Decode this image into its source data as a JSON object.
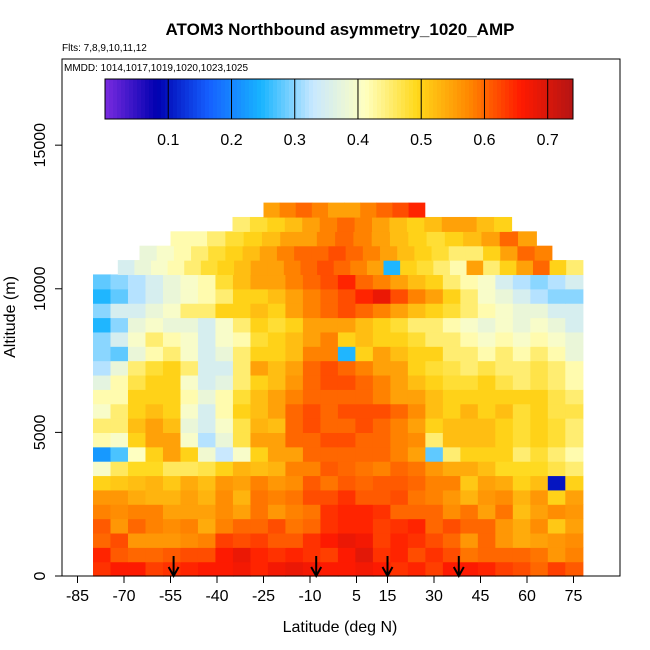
{
  "chart_data": {
    "type": "heatmap",
    "title": "ATOM3 Northbound asymmetry_1020_AMP",
    "flights_label": "Flts: 7,8,9,10,11,12",
    "mmdd_label": "MMDD: 1014,1017,1019,1020,1023,1025",
    "xlabel": "Latitude (deg N)",
    "ylabel": "Altitude (m)",
    "xlim": [
      -90,
      90
    ],
    "ylim": [
      0,
      18000
    ],
    "x_ticks": [
      -85,
      -70,
      -55,
      -40,
      -25,
      -10,
      5,
      15,
      30,
      45,
      60,
      75
    ],
    "y_ticks": [
      0,
      5000,
      10000,
      15000
    ],
    "colorbar": {
      "range": [
        0,
        0.74
      ],
      "ticks": [
        0.1,
        0.2,
        0.3,
        0.4,
        0.5,
        0.6,
        0.7
      ],
      "colors": [
        "#7a2be0",
        "#0000b0",
        "#1560ff",
        "#18b4ff",
        "#c8e8ff",
        "#ffffc0",
        "#ffd81a",
        "#ff8800",
        "#ff1a00",
        "#b41414"
      ]
    },
    "arrows_latitude": [
      -54,
      -8,
      15,
      38
    ],
    "bands": [
      {
        "alt": 250,
        "lat_min": -80,
        "lat_max": 78,
        "values": [
          0.64,
          0.66,
          0.66,
          0.63,
          0.64,
          0.65,
          0.66,
          0.66,
          0.67,
          0.65,
          0.67,
          0.68,
          0.67,
          0.66,
          0.66,
          0.67,
          0.66,
          0.64,
          0.65,
          0.63,
          0.66,
          0.66,
          0.65,
          0.63,
          0.62,
          0.6,
          0.63,
          0.61
        ]
      },
      {
        "alt": 750,
        "lat_min": -80,
        "lat_max": 78,
        "values": [
          0.65,
          0.61,
          0.6,
          0.6,
          0.61,
          0.62,
          0.62,
          0.66,
          0.68,
          0.65,
          0.64,
          0.65,
          0.64,
          0.63,
          0.66,
          0.69,
          0.64,
          0.65,
          0.62,
          0.64,
          0.62,
          0.59,
          0.6,
          0.6,
          0.6,
          0.59,
          0.56,
          0.58
        ]
      },
      {
        "alt": 1250,
        "lat_min": -80,
        "lat_max": 78,
        "values": [
          0.6,
          0.62,
          0.56,
          0.56,
          0.56,
          0.57,
          0.58,
          0.63,
          0.62,
          0.63,
          0.61,
          0.61,
          0.64,
          0.66,
          0.68,
          0.67,
          0.63,
          0.65,
          0.64,
          0.62,
          0.6,
          0.56,
          0.6,
          0.56,
          0.54,
          0.55,
          0.56,
          0.57
        ]
      },
      {
        "alt": 1750,
        "lat_min": -80,
        "lat_max": 78,
        "values": [
          0.61,
          0.56,
          0.6,
          0.58,
          0.57,
          0.58,
          0.54,
          0.58,
          0.6,
          0.6,
          0.62,
          0.59,
          0.6,
          0.64,
          0.65,
          0.65,
          0.63,
          0.64,
          0.65,
          0.6,
          0.62,
          0.6,
          0.6,
          0.56,
          0.54,
          0.57,
          0.51,
          0.55
        ]
      },
      {
        "alt": 2250,
        "lat_min": -80,
        "lat_max": 78,
        "values": [
          0.58,
          0.57,
          0.58,
          0.58,
          0.55,
          0.55,
          0.55,
          0.57,
          0.55,
          0.59,
          0.56,
          0.58,
          0.59,
          0.64,
          0.65,
          0.65,
          0.64,
          0.6,
          0.6,
          0.6,
          0.57,
          0.59,
          0.55,
          0.59,
          0.52,
          0.55,
          0.57,
          0.56
        ]
      },
      {
        "alt": 2750,
        "lat_min": -80,
        "lat_max": 78,
        "values": [
          0.56,
          0.56,
          0.54,
          0.53,
          0.53,
          0.55,
          0.53,
          0.57,
          0.53,
          0.59,
          0.58,
          0.59,
          0.62,
          0.62,
          0.64,
          0.61,
          0.61,
          0.62,
          0.59,
          0.58,
          0.56,
          0.53,
          0.56,
          0.57,
          0.53,
          0.56,
          0.5,
          0.55
        ]
      },
      {
        "alt": 3250,
        "lat_min": -80,
        "lat_max": 78,
        "values": [
          0.5,
          0.51,
          0.52,
          0.53,
          0.51,
          0.54,
          0.52,
          0.56,
          0.55,
          0.58,
          0.56,
          0.57,
          0.61,
          0.59,
          0.61,
          0.6,
          0.61,
          0.61,
          0.6,
          0.58,
          0.58,
          0.51,
          0.55,
          0.54,
          0.5,
          0.52,
          0.1,
          0.5
        ]
      },
      {
        "alt": 3750,
        "lat_min": -80,
        "lat_max": 78,
        "values": [
          0.4,
          0.46,
          0.49,
          0.49,
          0.46,
          0.46,
          0.47,
          0.5,
          0.53,
          0.52,
          0.53,
          0.58,
          0.58,
          0.61,
          0.6,
          0.59,
          0.58,
          0.6,
          0.59,
          0.56,
          0.54,
          0.54,
          0.52,
          0.49,
          0.49,
          0.49,
          0.47,
          0.45
        ]
      },
      {
        "alt": 4250,
        "lat_min": -80,
        "lat_max": 78,
        "values": [
          0.22,
          0.27,
          0.41,
          0.5,
          0.55,
          0.5,
          0.39,
          0.33,
          0.4,
          0.5,
          0.55,
          0.55,
          0.6,
          0.6,
          0.6,
          0.6,
          0.6,
          0.58,
          0.55,
          0.28,
          0.45,
          0.5,
          0.5,
          0.5,
          0.45,
          0.48,
          0.45,
          0.42
        ]
      },
      {
        "alt": 4750,
        "lat_min": -80,
        "lat_max": 78,
        "values": [
          0.42,
          0.4,
          0.5,
          0.55,
          0.55,
          0.4,
          0.32,
          0.38,
          0.47,
          0.55,
          0.55,
          0.6,
          0.6,
          0.62,
          0.62,
          0.6,
          0.6,
          0.58,
          0.57,
          0.45,
          0.52,
          0.52,
          0.52,
          0.5,
          0.48,
          0.5,
          0.48,
          0.45
        ]
      },
      {
        "alt": 5250,
        "lat_min": -80,
        "lat_max": 78,
        "values": [
          0.45,
          0.45,
          0.52,
          0.55,
          0.52,
          0.38,
          0.35,
          0.4,
          0.47,
          0.53,
          0.52,
          0.6,
          0.62,
          0.6,
          0.6,
          0.62,
          0.6,
          0.58,
          0.55,
          0.5,
          0.52,
          0.52,
          0.52,
          0.5,
          0.48,
          0.5,
          0.48,
          0.45
        ]
      },
      {
        "alt": 5750,
        "lat_min": -80,
        "lat_max": 78,
        "values": [
          0.4,
          0.45,
          0.5,
          0.52,
          0.5,
          0.4,
          0.35,
          0.42,
          0.5,
          0.52,
          0.55,
          0.6,
          0.62,
          0.6,
          0.62,
          0.62,
          0.62,
          0.6,
          0.57,
          0.52,
          0.5,
          0.53,
          0.5,
          0.52,
          0.48,
          0.5,
          0.47,
          0.47
        ]
      },
      {
        "alt": 6250,
        "lat_min": -80,
        "lat_max": 78,
        "values": [
          0.42,
          0.42,
          0.5,
          0.5,
          0.5,
          0.42,
          0.38,
          0.42,
          0.48,
          0.52,
          0.55,
          0.58,
          0.6,
          0.6,
          0.6,
          0.6,
          0.58,
          0.55,
          0.55,
          0.52,
          0.5,
          0.5,
          0.5,
          0.5,
          0.5,
          0.5,
          0.47,
          0.45
        ]
      },
      {
        "alt": 6750,
        "lat_min": -80,
        "lat_max": 78,
        "values": [
          0.37,
          0.42,
          0.47,
          0.5,
          0.5,
          0.4,
          0.35,
          0.37,
          0.45,
          0.5,
          0.52,
          0.56,
          0.6,
          0.62,
          0.62,
          0.6,
          0.58,
          0.55,
          0.52,
          0.5,
          0.48,
          0.48,
          0.5,
          0.47,
          0.45,
          0.47,
          0.45,
          0.42
        ]
      },
      {
        "alt": 7250,
        "lat_min": -80,
        "lat_max": 78,
        "values": [
          0.32,
          0.38,
          0.45,
          0.48,
          0.5,
          0.45,
          0.35,
          0.35,
          0.45,
          0.55,
          0.52,
          0.55,
          0.6,
          0.62,
          0.6,
          0.58,
          0.55,
          0.55,
          0.5,
          0.48,
          0.47,
          0.45,
          0.47,
          0.45,
          0.45,
          0.47,
          0.45,
          0.42
        ]
      },
      {
        "alt": 7750,
        "lat_min": -80,
        "lat_max": 78,
        "values": [
          0.3,
          0.28,
          0.38,
          0.42,
          0.45,
          0.4,
          0.35,
          0.38,
          0.45,
          0.5,
          0.5,
          0.52,
          0.58,
          0.58,
          0.25,
          0.5,
          0.55,
          0.52,
          0.5,
          0.5,
          0.45,
          0.45,
          0.42,
          0.45,
          0.42,
          0.45,
          0.42,
          0.38
        ]
      },
      {
        "alt": 8250,
        "lat_min": -80,
        "lat_max": 78,
        "values": [
          0.3,
          0.35,
          0.4,
          0.45,
          0.42,
          0.4,
          0.35,
          0.4,
          0.42,
          0.48,
          0.5,
          0.52,
          0.55,
          0.58,
          0.5,
          0.52,
          0.5,
          0.5,
          0.48,
          0.45,
          0.45,
          0.42,
          0.4,
          0.42,
          0.4,
          0.42,
          0.4,
          0.38
        ]
      },
      {
        "alt": 8750,
        "lat_min": -80,
        "lat_max": 78,
        "values": [
          0.25,
          0.3,
          0.38,
          0.4,
          0.38,
          0.38,
          0.35,
          0.4,
          0.45,
          0.5,
          0.48,
          0.5,
          0.55,
          0.55,
          0.55,
          0.52,
          0.5,
          0.48,
          0.45,
          0.45,
          0.42,
          0.4,
          0.38,
          0.4,
          0.38,
          0.4,
          0.38,
          0.35
        ]
      },
      {
        "alt": 9250,
        "lat_min": -80,
        "lat_max": 78,
        "values": [
          0.3,
          0.35,
          0.35,
          0.38,
          0.4,
          0.45,
          0.45,
          0.5,
          0.5,
          0.52,
          0.5,
          0.55,
          0.58,
          0.6,
          0.62,
          0.6,
          0.58,
          0.55,
          0.52,
          0.5,
          0.48,
          0.45,
          0.42,
          0.4,
          0.38,
          0.38,
          0.35,
          0.35
        ]
      },
      {
        "alt": 9750,
        "lat_min": -80,
        "lat_max": 78,
        "values": [
          0.25,
          0.28,
          0.32,
          0.35,
          0.38,
          0.4,
          0.42,
          0.45,
          0.5,
          0.5,
          0.52,
          0.55,
          0.58,
          0.6,
          0.62,
          0.65,
          0.68,
          0.62,
          0.58,
          0.55,
          0.5,
          0.45,
          0.4,
          0.38,
          0.35,
          0.32,
          0.3,
          0.3
        ]
      },
      {
        "alt": 10250,
        "lat_min": -80,
        "lat_max": 78,
        "values": [
          0.28,
          0.3,
          0.32,
          0.35,
          0.38,
          0.4,
          0.42,
          0.48,
          0.52,
          0.55,
          0.55,
          0.58,
          0.6,
          0.62,
          0.65,
          0.6,
          0.58,
          0.55,
          0.52,
          0.5,
          0.45,
          0.42,
          0.4,
          0.35,
          0.32,
          0.3,
          0.32,
          0.35
        ]
      },
      {
        "alt": 10750,
        "lat_min": -72,
        "lat_max": 78,
        "values": [
          0.35,
          0.38,
          0.4,
          0.42,
          0.45,
          0.48,
          0.5,
          0.52,
          0.55,
          0.55,
          0.58,
          0.6,
          0.62,
          0.6,
          0.58,
          0.55,
          0.25,
          0.5,
          0.48,
          0.45,
          0.42,
          0.55,
          0.45,
          0.5,
          0.55,
          0.6,
          0.5,
          0.45
        ]
      },
      {
        "alt": 11250,
        "lat_min": -65,
        "lat_max": 68,
        "values": [
          0.38,
          0.4,
          0.42,
          0.45,
          0.48,
          0.5,
          0.52,
          0.55,
          0.58,
          0.6,
          0.6,
          0.62,
          0.6,
          0.58,
          0.55,
          0.52,
          0.5,
          0.48,
          0.45,
          0.45,
          0.5,
          0.55,
          0.6,
          0.58
        ]
      },
      {
        "alt": 11750,
        "lat_min": -55,
        "lat_max": 63,
        "values": [
          0.42,
          0.42,
          0.45,
          0.48,
          0.5,
          0.52,
          0.55,
          0.55,
          0.58,
          0.6,
          0.58,
          0.55,
          0.52,
          0.5,
          0.48,
          0.5,
          0.52,
          0.55,
          0.6,
          0.55
        ]
      },
      {
        "alt": 12250,
        "lat_min": -35,
        "lat_max": 55,
        "values": [
          0.45,
          0.48,
          0.5,
          0.52,
          0.55,
          0.58,
          0.6,
          0.58,
          0.55,
          0.52,
          0.5,
          0.52,
          0.55,
          0.55,
          0.52,
          0.5
        ]
      },
      {
        "alt": 12750,
        "lat_min": -25,
        "lat_max": 27,
        "values": [
          0.55,
          0.58,
          0.6,
          0.58,
          0.55,
          0.55,
          0.58,
          0.6,
          0.62,
          0.65
        ]
      }
    ]
  }
}
